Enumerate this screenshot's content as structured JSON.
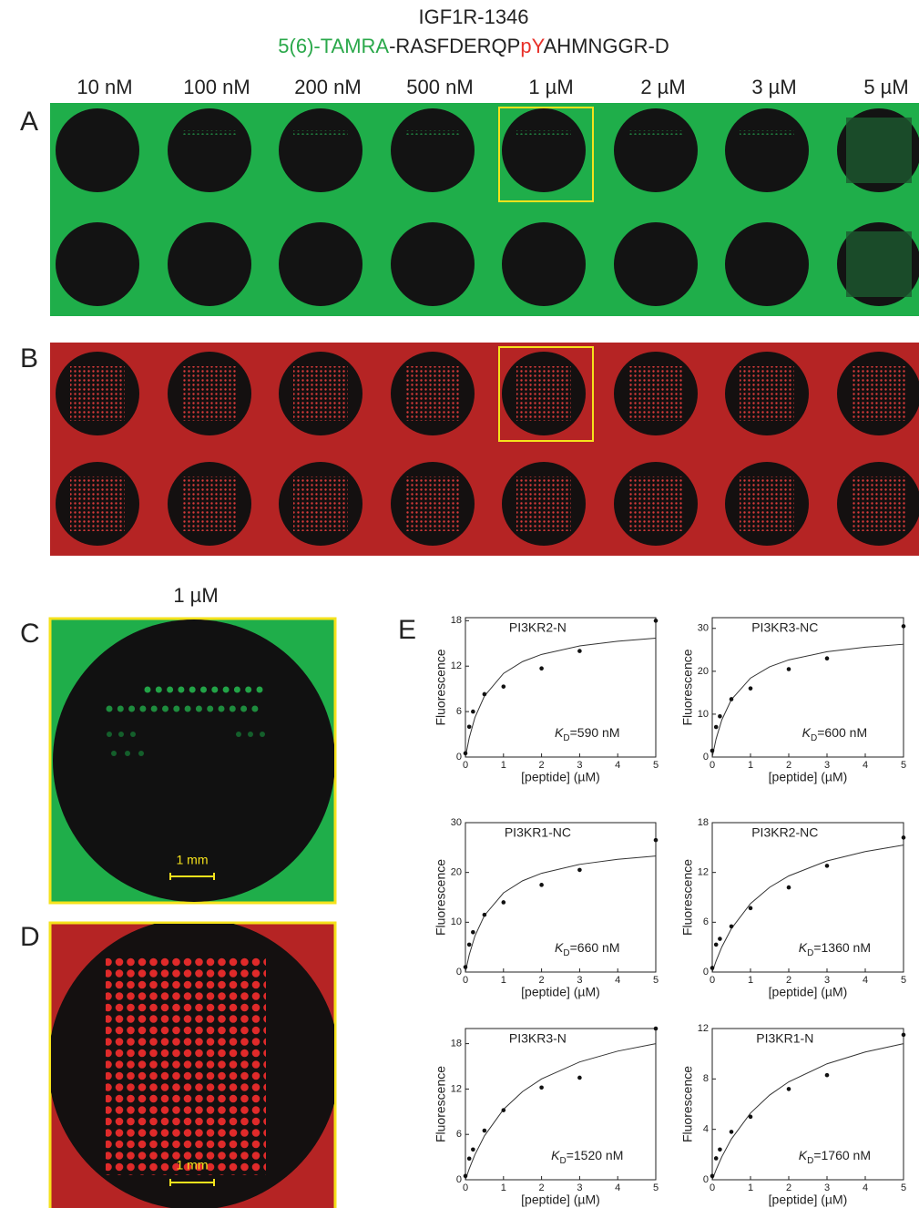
{
  "figure": {
    "title": "IGF1R-1346",
    "sequence": [
      {
        "text": "5(6)-TAMRA",
        "color": "#2aa84a"
      },
      {
        "text": "-RASFDERQP",
        "color": "#222222"
      },
      {
        "text": "pY",
        "color": "#e8312a"
      },
      {
        "text": "AHMNGGR-D",
        "color": "#222222"
      }
    ],
    "concentrations": [
      "10 nM",
      "100 nM",
      "200 nM",
      "500 nM",
      "1 µM",
      "2 µM",
      "3 µM",
      "5 µM"
    ],
    "panel_labels": [
      "A",
      "B",
      "C",
      "D",
      "E"
    ],
    "zoom_label": "1 µM",
    "scale_bar": "1 mm"
  },
  "chart_data": [
    {
      "type": "scatter",
      "title": "PI3KR2-N",
      "x_label": "[peptide] (µM)",
      "y_label": "Fluorescence",
      "kd": {
        "k": "K",
        "sub": "D",
        "text": "=590 nM"
      },
      "points": {
        "x": [
          0,
          0.1,
          0.2,
          0.5,
          1,
          2,
          3,
          5
        ],
        "y": [
          0.5,
          4,
          6,
          8.3,
          9.3,
          11.7,
          14,
          18
        ]
      },
      "fit": {
        "x": [
          0,
          0.1,
          0.25,
          0.5,
          1,
          1.5,
          2,
          3,
          4,
          5
        ],
        "y": [
          0,
          2.54,
          5.22,
          8.05,
          11.04,
          12.6,
          13.55,
          14.67,
          15.29,
          15.7
        ]
      },
      "xlim": [
        0,
        5
      ],
      "xticks": [
        0,
        1,
        2,
        3,
        4,
        5
      ],
      "ylim": [
        0,
        18.4
      ],
      "yticks": [
        0,
        6,
        12,
        18
      ]
    },
    {
      "type": "scatter",
      "title": "PI3KR3-NC",
      "x_label": "[peptide] (µM)",
      "y_label": "Fluorescence",
      "kd": {
        "k": "K",
        "sub": "D",
        "text": "=600 nM"
      },
      "points": {
        "x": [
          0,
          0.1,
          0.2,
          0.5,
          1,
          2,
          3,
          5
        ],
        "y": [
          1.5,
          7,
          9.5,
          13.5,
          16,
          20.5,
          23,
          30.5
        ]
      },
      "fit": {
        "x": [
          0,
          0.1,
          0.25,
          0.5,
          1,
          1.5,
          2,
          3,
          4,
          5
        ],
        "y": [
          0,
          4.21,
          8.66,
          13.39,
          18.41,
          21.04,
          22.66,
          24.55,
          25.62,
          26.3
        ]
      },
      "xlim": [
        0,
        5
      ],
      "xticks": [
        0,
        1,
        2,
        3,
        4,
        5
      ],
      "ylim": [
        0,
        32.5
      ],
      "yticks": [
        0,
        10,
        20,
        30
      ]
    },
    {
      "type": "scatter",
      "title": "PI3KR1-NC",
      "x_label": "[peptide] (µM)",
      "y_label": "Fluorescence",
      "kd": {
        "k": "K",
        "sub": "D",
        "text": "=660 nM"
      },
      "points": {
        "x": [
          0,
          0.1,
          0.2,
          0.5,
          1,
          2,
          3,
          5
        ],
        "y": [
          1,
          5.5,
          8,
          11.5,
          14,
          17.5,
          20.5,
          26.5
        ]
      },
      "fit": {
        "x": [
          0,
          0.1,
          0.25,
          0.5,
          1,
          1.5,
          2,
          3,
          4,
          5
        ],
        "y": [
          0,
          3.47,
          7.25,
          11.37,
          15.89,
          18.32,
          19.83,
          21.62,
          22.64,
          23.3
        ]
      },
      "xlim": [
        0,
        5
      ],
      "xticks": [
        0,
        1,
        2,
        3,
        4,
        5
      ],
      "ylim": [
        0,
        30
      ],
      "yticks": [
        0,
        10,
        20,
        30
      ]
    },
    {
      "type": "scatter",
      "title": "PI3KR2-NC",
      "x_label": "[peptide] (µM)",
      "y_label": "Fluorescence",
      "kd": {
        "k": "K",
        "sub": "D",
        "text": "=1360 nM"
      },
      "points": {
        "x": [
          0,
          0.1,
          0.2,
          0.5,
          1,
          2,
          3,
          5
        ],
        "y": [
          0.5,
          3.3,
          4,
          5.5,
          7.7,
          10.2,
          12.8,
          16.2
        ]
      },
      "fit": {
        "x": [
          0,
          0.1,
          0.25,
          0.5,
          1,
          1.5,
          2,
          3,
          4,
          5
        ],
        "y": [
          0,
          1.33,
          3.02,
          5.23,
          8.25,
          10.21,
          11.58,
          13.39,
          14.52,
          15.3
        ]
      },
      "xlim": [
        0,
        5
      ],
      "xticks": [
        0,
        1,
        2,
        3,
        4,
        5
      ],
      "ylim": [
        0,
        18
      ],
      "yticks": [
        0,
        6,
        12,
        18
      ]
    },
    {
      "type": "scatter",
      "title": "PI3KR3-N",
      "x_label": "[peptide] (µM)",
      "y_label": "Fluorescence",
      "kd": {
        "k": "K",
        "sub": "D",
        "text": "=1520 nM"
      },
      "points": {
        "x": [
          0,
          0.1,
          0.2,
          0.5,
          1,
          2,
          3,
          5
        ],
        "y": [
          0.5,
          2.8,
          4,
          6.5,
          9.2,
          12.2,
          13.5,
          20
        ]
      },
      "fit": {
        "x": [
          0,
          0.1,
          0.25,
          0.5,
          1,
          1.5,
          2,
          3,
          4,
          5
        ],
        "y": [
          0,
          1.45,
          3.32,
          5.81,
          9.31,
          11.66,
          13.34,
          15.58,
          17.01,
          18
        ]
      },
      "xlim": [
        0,
        5
      ],
      "xticks": [
        0,
        1,
        2,
        3,
        4,
        5
      ],
      "ylim": [
        0,
        20
      ],
      "yticks": [
        0,
        6,
        12,
        18
      ]
    },
    {
      "type": "scatter",
      "title": "PI3KR1-N",
      "x_label": "[peptide] (µM)",
      "y_label": "Fluorescence",
      "kd": {
        "k": "K",
        "sub": "D",
        "text": "=1760 nM"
      },
      "points": {
        "x": [
          0,
          0.1,
          0.2,
          0.5,
          1,
          2,
          3,
          5
        ],
        "y": [
          0.3,
          1.7,
          2.4,
          3.8,
          5,
          7.2,
          8.3,
          11.5
        ]
      },
      "fit": {
        "x": [
          0,
          0.1,
          0.25,
          0.5,
          1,
          1.5,
          2,
          3,
          4,
          5
        ],
        "y": [
          0,
          0.78,
          1.82,
          3.23,
          5.29,
          6.72,
          7.77,
          9.2,
          10.14,
          10.8
        ]
      },
      "xlim": [
        0,
        5
      ],
      "xticks": [
        0,
        1,
        2,
        3,
        4,
        5
      ],
      "ylim": [
        0,
        12
      ],
      "yticks": [
        0,
        4,
        8,
        12
      ]
    }
  ]
}
